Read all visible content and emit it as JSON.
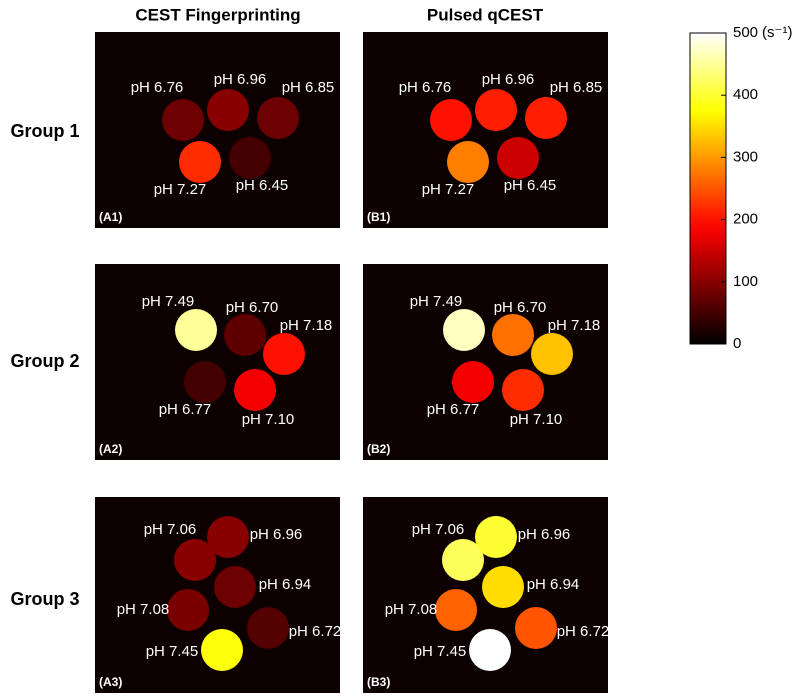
{
  "column_titles": [
    "CEST Fingerprinting",
    "Pulsed qCEST"
  ],
  "row_labels": [
    "Group 1",
    "Group 2",
    "Group 3"
  ],
  "colorbar": {
    "range": [
      0,
      500
    ],
    "ticks": [
      0,
      100,
      200,
      300,
      400,
      500
    ],
    "unit": "(s⁻¹)",
    "colormap": "hot"
  },
  "panels": [
    {
      "tag": "(A1)",
      "vials": [
        {
          "label": "pH 6.76",
          "value": 80
        },
        {
          "label": "pH 6.96",
          "value": 100
        },
        {
          "label": "pH 6.85",
          "value": 80
        },
        {
          "label": "pH 7.27",
          "value": 220
        },
        {
          "label": "pH 6.45",
          "value": 50
        }
      ]
    },
    {
      "tag": "(B1)",
      "vials": [
        {
          "label": "pH 6.76",
          "value": 200
        },
        {
          "label": "pH 6.96",
          "value": 210
        },
        {
          "label": "pH 6.85",
          "value": 210
        },
        {
          "label": "pH 7.27",
          "value": 280
        },
        {
          "label": "pH 6.45",
          "value": 150
        }
      ]
    },
    {
      "tag": "(A2)",
      "vials": [
        {
          "label": "pH 7.49",
          "value": 450
        },
        {
          "label": "pH 6.70",
          "value": 70
        },
        {
          "label": "pH 7.18",
          "value": 200
        },
        {
          "label": "pH 6.77",
          "value": 50
        },
        {
          "label": "pH 7.10",
          "value": 180
        }
      ]
    },
    {
      "tag": "(B2)",
      "vials": [
        {
          "label": "pH 7.49",
          "value": 470
        },
        {
          "label": "pH 6.70",
          "value": 270
        },
        {
          "label": "pH 7.18",
          "value": 330
        },
        {
          "label": "pH 6.77",
          "value": 180
        },
        {
          "label": "pH 7.10",
          "value": 220
        }
      ]
    },
    {
      "tag": "(A3)",
      "vials": [
        {
          "label": "pH 7.06",
          "value": 100
        },
        {
          "label": "pH 6.96",
          "value": 100
        },
        {
          "label": "pH 6.94",
          "value": 80
        },
        {
          "label": "pH 7.08",
          "value": 90
        },
        {
          "label": "pH 6.72",
          "value": 60
        },
        {
          "label": "pH 7.45",
          "value": 380
        }
      ]
    },
    {
      "tag": "(B3)",
      "vials": [
        {
          "label": "pH 7.06",
          "value": 420
        },
        {
          "label": "pH 6.96",
          "value": 400
        },
        {
          "label": "pH 6.94",
          "value": 350
        },
        {
          "label": "pH 7.08",
          "value": 260
        },
        {
          "label": "pH 6.72",
          "value": 250
        },
        {
          "label": "pH 7.45",
          "value": 500
        }
      ]
    }
  ]
}
